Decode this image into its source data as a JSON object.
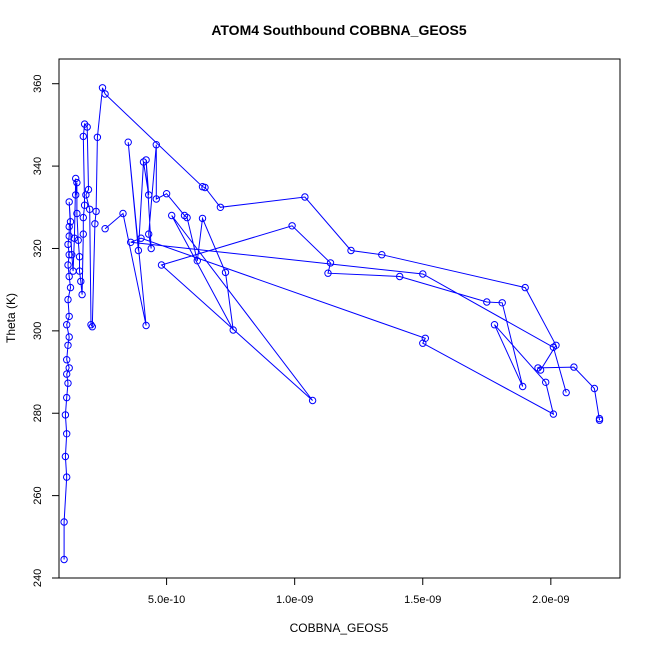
{
  "chart_data": {
    "type": "line",
    "title": "ATOM4 Southbound COBBNA_GEOS5",
    "xlabel": "COBBNA_GEOS5",
    "ylabel": "Theta (K)",
    "xlim": [
      8e-11,
      2.27e-09
    ],
    "ylim": [
      240,
      366
    ],
    "x_ticks": [
      5e-10,
      1e-09,
      1.5e-09,
      2e-09
    ],
    "x_tick_labels": [
      "5.0e-10",
      "1.0e-09",
      "1.5e-09",
      "2.0e-09"
    ],
    "y_ticks": [
      240,
      260,
      280,
      300,
      320,
      340,
      360
    ],
    "y_tick_labels": [
      "240",
      "260",
      "280",
      "300",
      "320",
      "340",
      "360"
    ],
    "grid": false,
    "line_color": "#0000ff",
    "marker": "open-circle",
    "series": [
      {
        "points": [
          [
            1e-10,
            244.5
          ],
          [
            1e-10,
            253.6
          ],
          [
            1.1e-10,
            264.5
          ],
          [
            1.05e-10,
            269.5
          ],
          [
            1.1e-10,
            275.0
          ],
          [
            1.05e-10,
            279.6
          ],
          [
            1.1e-10,
            283.8
          ],
          [
            1.15e-10,
            287.3
          ],
          [
            1.1e-10,
            289.5
          ],
          [
            1.2e-10,
            291.0
          ],
          [
            1.1e-10,
            293.0
          ],
          [
            1.15e-10,
            296.5
          ],
          [
            1.2e-10,
            298.5
          ],
          [
            1.1e-10,
            301.5
          ],
          [
            1.2e-10,
            303.5
          ],
          [
            1.15e-10,
            307.6
          ],
          [
            1.25e-10,
            310.5
          ],
          [
            1.2e-10,
            313.2
          ],
          [
            1.15e-10,
            316.0
          ],
          [
            1.2e-10,
            318.5
          ],
          [
            1.15e-10,
            321.0
          ],
          [
            1.2e-10,
            323.0
          ],
          [
            1.2e-10,
            325.3
          ],
          [
            1.25e-10,
            326.5
          ],
          [
            1.2e-10,
            331.3
          ],
          [
            1.3e-10,
            318.5
          ],
          [
            1.35e-10,
            314.5
          ],
          [
            1.4e-10,
            322.5
          ],
          [
            1.45e-10,
            337.0
          ],
          [
            1.45e-10,
            333.0
          ],
          [
            1.5e-10,
            336.0
          ],
          [
            1.5e-10,
            328.5
          ],
          [
            1.55e-10,
            322.0
          ],
          [
            1.6e-10,
            318.0
          ],
          [
            1.6e-10,
            314.5
          ],
          [
            1.65e-10,
            312.0
          ],
          [
            1.7e-10,
            308.8
          ],
          [
            1.75e-10,
            323.5
          ],
          [
            1.75e-10,
            327.5
          ],
          [
            1.8e-10,
            330.5
          ],
          [
            1.75e-10,
            347.2
          ],
          [
            1.8e-10,
            350.2
          ],
          [
            1.9e-10,
            349.5
          ],
          [
            1.95e-10,
            334.3
          ],
          [
            1.85e-10,
            333.0
          ],
          [
            2e-10,
            329.5
          ],
          [
            2.05e-10,
            301.5
          ],
          [
            2.1e-10,
            301.0
          ],
          [
            2.2e-10,
            326.0
          ],
          [
            2.25e-10,
            329.0
          ],
          [
            2.3e-10,
            347.0
          ],
          [
            2.5e-10,
            359.0
          ],
          [
            2.6e-10,
            357.5
          ],
          [
            6.4e-10,
            335.0
          ],
          [
            6.5e-10,
            334.8
          ],
          [
            7.1e-10,
            330.0
          ],
          [
            1.04e-09,
            332.5
          ],
          [
            1.22e-09,
            319.5
          ],
          [
            1.34e-09,
            318.5
          ],
          [
            1.9e-09,
            310.5
          ],
          [
            2.02e-09,
            296.5
          ],
          [
            1.96e-09,
            290.5
          ],
          [
            1.95e-09,
            291.0
          ],
          [
            2.09e-09,
            291.2
          ],
          [
            2.17e-09,
            286.0
          ],
          [
            2.19e-09,
            278.3
          ],
          [
            2.19e-09,
            278.7
          ]
        ]
      },
      {
        "points": [
          [
            2.6e-10,
            324.8
          ],
          [
            3.3e-10,
            328.5
          ],
          [
            4.2e-10,
            301.3
          ],
          [
            3.5e-10,
            345.8
          ],
          [
            3.9e-10,
            319.5
          ],
          [
            4.1e-10,
            341.0
          ],
          [
            4.3e-10,
            333.0
          ],
          [
            4.2e-10,
            341.5
          ],
          [
            4.4e-10,
            320.0
          ],
          [
            4.3e-10,
            323.5
          ],
          [
            4.6e-10,
            345.2
          ],
          [
            4.6e-10,
            332.0
          ],
          [
            5e-10,
            333.3
          ],
          [
            5.7e-10,
            328.0
          ],
          [
            5.8e-10,
            327.5
          ],
          [
            6.2e-10,
            317.0
          ],
          [
            6.4e-10,
            327.3
          ],
          [
            7.3e-10,
            314.2
          ],
          [
            7.6e-10,
            300.2
          ],
          [
            5.2e-10,
            328.0
          ],
          [
            1.07e-09,
            283.1
          ],
          [
            4.8e-10,
            316.0
          ],
          [
            9.9e-10,
            325.5
          ],
          [
            1.14e-09,
            316.5
          ],
          [
            1.13e-09,
            314.0
          ],
          [
            1.41e-09,
            313.2
          ],
          [
            1.75e-09,
            307.0
          ],
          [
            1.81e-09,
            306.8
          ],
          [
            1.89e-09,
            286.5
          ],
          [
            1.78e-09,
            301.5
          ],
          [
            1.98e-09,
            287.5
          ],
          [
            2.01e-09,
            279.8
          ],
          [
            1.5e-09,
            297.0
          ],
          [
            1.51e-09,
            298.2
          ],
          [
            4e-10,
            322.5
          ],
          [
            3.6e-10,
            321.5
          ],
          [
            1.5e-09,
            313.8
          ],
          [
            2.01e-09,
            296.0
          ],
          [
            2.06e-09,
            285.0
          ]
        ]
      }
    ]
  }
}
